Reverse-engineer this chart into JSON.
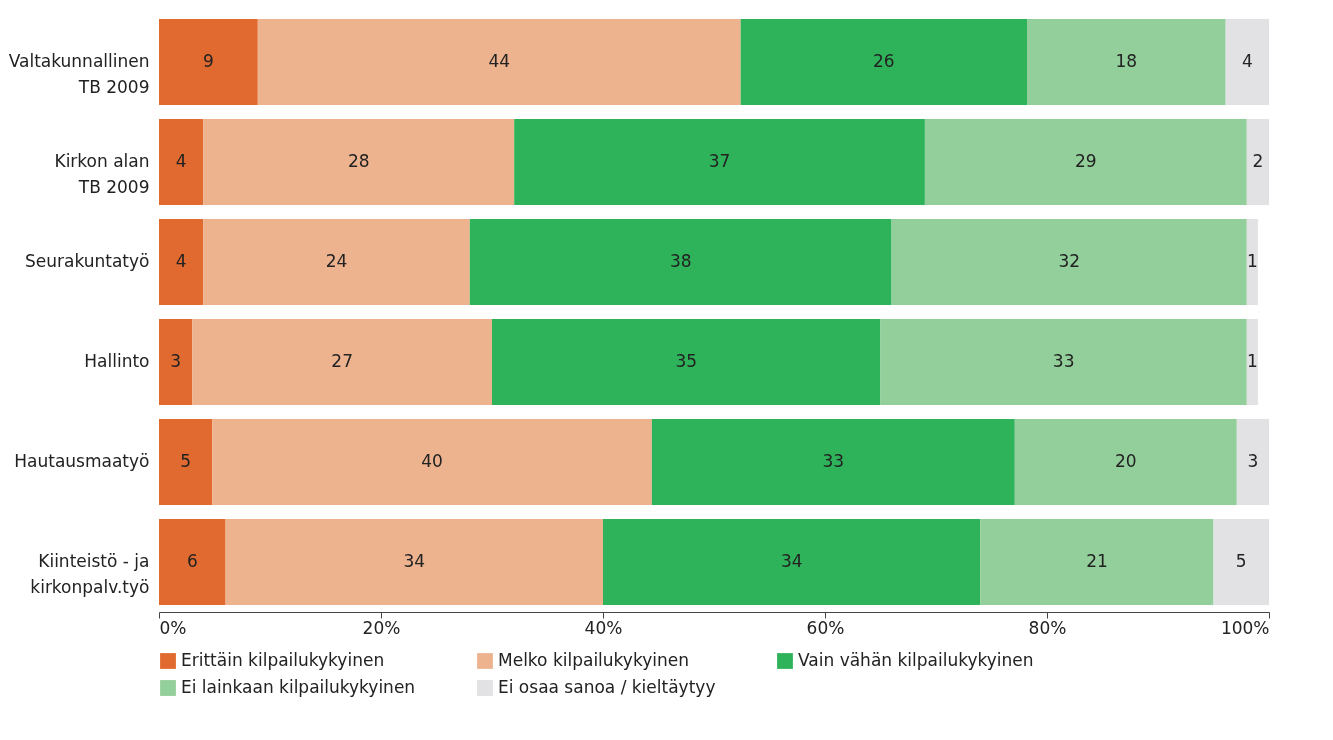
{
  "chart_data": {
    "type": "bar",
    "orientation": "horizontal",
    "stacked": true,
    "legend": "bottom",
    "grid": false,
    "categories": [
      "Valtakunnallinen\nTB 2009",
      "Kirkon alan\nTB 2009",
      "Seurakuntatyö",
      "Hallinto",
      "Hautausmaatyö",
      "Kiinteistö - ja\nkirkonpalv.työ"
    ],
    "series": [
      {
        "name": "Erittäin kilpailukykyinen",
        "color": "#e06a2f",
        "values": [
          8.9,
          4,
          4,
          3,
          4.8,
          6
        ],
        "value_labels": [
          "9",
          "4",
          "4",
          "3",
          "5",
          "6"
        ]
      },
      {
        "name": "Melko kilpailukykyinen",
        "color": "#edb38f",
        "values": [
          43.5,
          28,
          24,
          27,
          39.6,
          34
        ],
        "value_labels": [
          "44",
          "28",
          "24",
          "27",
          "40",
          "34"
        ]
      },
      {
        "name": "Vain vähän kilpailukykyinen",
        "color": "#2fb35a",
        "values": [
          25.8,
          37,
          38,
          35,
          32.7,
          34
        ],
        "value_labels": [
          "26",
          "37",
          "38",
          "35",
          "33",
          "34"
        ]
      },
      {
        "name": "Ei lainkaan kilpailukykyinen",
        "color": "#93cf9b",
        "values": [
          17.9,
          29,
          32,
          33,
          20,
          21
        ],
        "value_labels": [
          "18",
          "29",
          "32",
          "33",
          "20",
          "21"
        ]
      },
      {
        "name": "Ei osaa sanoa / kieltäytyy",
        "color": "#e2e2e4",
        "values": [
          3.9,
          2,
          1,
          1,
          2.9,
          5
        ],
        "value_labels": [
          "4",
          "2",
          "1",
          "1",
          "3",
          "5"
        ]
      }
    ],
    "xlim": [
      0,
      100
    ],
    "xticks": [
      {
        "value": 0,
        "label": "0%"
      },
      {
        "value": 20,
        "label": "20%"
      },
      {
        "value": 40,
        "label": "40%"
      },
      {
        "value": 60,
        "label": "60%"
      },
      {
        "value": 80,
        "label": "80%"
      },
      {
        "value": 100,
        "label": "100%"
      }
    ]
  }
}
